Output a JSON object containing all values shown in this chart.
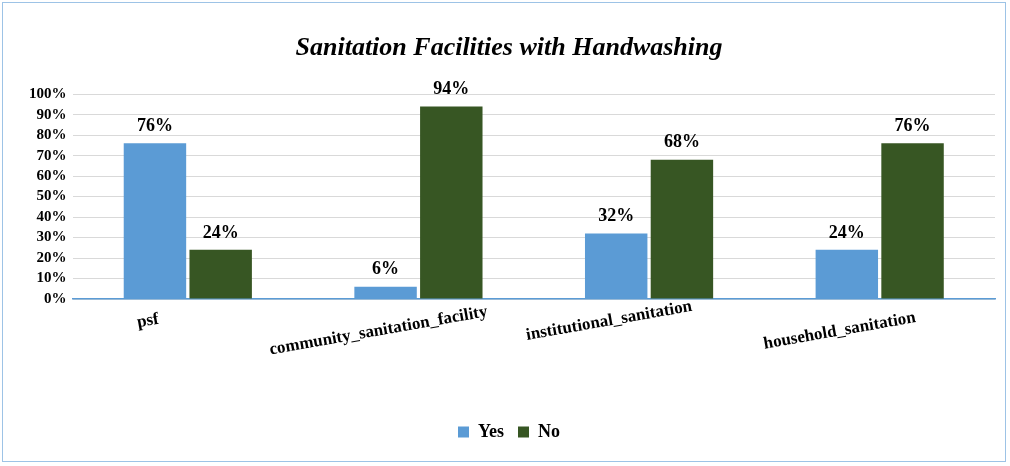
{
  "chart_data": {
    "type": "bar",
    "title": "Sanitation Facilities with Handwashing",
    "categories": [
      "psf",
      "community_sanitation_facility",
      "institutional_sanitation",
      "household_sanitation"
    ],
    "series": [
      {
        "name": "Yes",
        "color": "#5b9bd5",
        "values": [
          76,
          6,
          32,
          24
        ],
        "value_labels": [
          "76%",
          "6%",
          "32%",
          "24%"
        ]
      },
      {
        "name": "No",
        "color": "#375623",
        "values": [
          24,
          94,
          68,
          76
        ],
        "value_labels": [
          "24%",
          "94%",
          "68%",
          "76%"
        ]
      }
    ],
    "ylim": [
      0,
      100
    ],
    "yticks": [
      {
        "value": 0,
        "label": "0%"
      },
      {
        "value": 10,
        "label": "10%"
      },
      {
        "value": 20,
        "label": "20%"
      },
      {
        "value": 30,
        "label": "30%"
      },
      {
        "value": 40,
        "label": "40%"
      },
      {
        "value": 50,
        "label": "50%"
      },
      {
        "value": 60,
        "label": "60%"
      },
      {
        "value": 70,
        "label": "70%"
      },
      {
        "value": 80,
        "label": "80%"
      },
      {
        "value": 90,
        "label": "90%"
      },
      {
        "value": 100,
        "label": "100%"
      }
    ],
    "grid": "y",
    "legend": "bottom"
  }
}
